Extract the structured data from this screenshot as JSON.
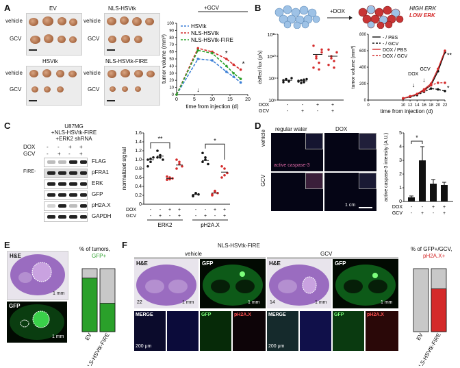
{
  "panelA": {
    "label": "A",
    "photos": [
      {
        "title": "EV",
        "rows": [
          "vehicle",
          "GCV"
        ]
      },
      {
        "title": "NLS-HSVtk",
        "rows": [
          "vehicle",
          "GCV"
        ]
      },
      {
        "title": "HSVtk",
        "rows": [
          "vehicle",
          "GCV"
        ]
      },
      {
        "title": "NLS-HSVtk-FIRE",
        "rows": [
          "vehicle",
          "GCV"
        ]
      }
    ],
    "gcv_label": "+GCV"
  },
  "panelB": {
    "label": "B",
    "dox_label": "+DOX",
    "high_erk": "HIGH ERK",
    "low_erk": "LOW ERK",
    "dox_marker": "DOX",
    "gcv_marker": "GCV"
  },
  "panelC": {
    "label": "C",
    "header": [
      "U87MG",
      "+NLS-HSVtk-FIRE",
      "+ERK2 shRNA"
    ],
    "dox_row_label": "DOX",
    "gcv_row_label": "GCV",
    "dox_signs": [
      "-",
      "-",
      "+",
      "+"
    ],
    "gcv_signs": [
      "-",
      "+",
      "-",
      "+"
    ],
    "fire_label": "FIRE-",
    "blots": [
      "FLAG",
      "pFRA1",
      "ERK",
      "GFP",
      "pH2A.X",
      "GAPDH"
    ]
  },
  "panelD": {
    "label": "D",
    "col1": "regular water",
    "col2": "DOX",
    "row1": "vehicle",
    "row2": "GCV",
    "stain": "active caspase-3",
    "scale": "1 cm"
  },
  "panelE": {
    "label": "E",
    "he": "H&E",
    "gfp": "GFP",
    "scale1": "1 mm",
    "scale2": "1 mm"
  },
  "panelF": {
    "label": "F",
    "title": "NLS-HSVtk-FIRE",
    "vehicle": "vehicle",
    "gcv": "GCV",
    "he": "H&E",
    "gfp": "GFP",
    "merge": "MERGE",
    "ph2ax": "pH2A.X",
    "num1": "22",
    "num2": "14",
    "scale_mm": "1 mm",
    "scale_um": "200 μm"
  },
  "chart_data": [
    {
      "id": "A-growth",
      "type": "line",
      "title": "",
      "xlabel": "time from injection (d)",
      "ylabel": "tumor volume (mm³)",
      "x": [
        0,
        6,
        10,
        14,
        16,
        18
      ],
      "xlim": [
        0,
        20
      ],
      "ylim": [
        0,
        100
      ],
      "xticks": [
        0,
        5,
        10,
        15,
        20
      ],
      "yticks": [
        0,
        10,
        20,
        30,
        40,
        50,
        60,
        70,
        80,
        90,
        100
      ],
      "series": [
        {
          "name": "HSVtk",
          "color": "#3b7fd6",
          "values": [
            0,
            50,
            48,
            32,
            25,
            17
          ]
        },
        {
          "name": "NLS-HSVtk",
          "color": "#d42a2a",
          "values": [
            0,
            65,
            60,
            50,
            42,
            35
          ]
        },
        {
          "name": "NLS-HSVtk-FIRE",
          "color": "#2aa02a",
          "values": [
            0,
            62,
            58,
            40,
            30,
            22
          ]
        }
      ],
      "annotations": [
        "*",
        "*"
      ]
    },
    {
      "id": "B-flux",
      "type": "scatter",
      "ylabel": "dsRed flux (p/s)",
      "yscale": "log",
      "ylim": [
        100000000,
        100000000000
      ],
      "ytick_labels": [
        "10⁸",
        "10⁹",
        "10¹⁰",
        "10¹¹"
      ],
      "row_labels": [
        "DOX",
        "GCV"
      ],
      "groups": [
        {
          "dox": "-",
          "gcv": "-",
          "color": "#111111",
          "values": [
            800000000,
            900000000,
            700000000,
            1000000000,
            650000000,
            850000000,
            750000000
          ],
          "mean": 800000000
        },
        {
          "dox": "-",
          "gcv": "+",
          "color": "#111111",
          "values": [
            700000000,
            800000000,
            650000000,
            900000000,
            750000000,
            600000000,
            850000000
          ],
          "mean": 750000000
        },
        {
          "dox": "+",
          "gcv": "-",
          "color": "#d42a2a",
          "values": [
            30000000000,
            10000000000,
            5000000000,
            20000000000,
            3000000000,
            8000000000,
            2500000000,
            15000000000
          ],
          "mean": 12000000000
        },
        {
          "dox": "+",
          "gcv": "+",
          "color": "#d42a2a",
          "values": [
            20000000000,
            10000000000,
            6000000000,
            15000000000,
            4000000000,
            8000000000,
            3000000000
          ],
          "mean": 10000000000
        }
      ]
    },
    {
      "id": "B-growth",
      "type": "line",
      "xlabel": "time from injection (d)",
      "ylabel": "tumor volume (mm³)",
      "x": [
        10,
        12,
        14,
        16,
        18,
        20,
        22
      ],
      "xlim": [
        0,
        22
      ],
      "ylim": [
        0,
        800
      ],
      "xticks": [
        0,
        10,
        12,
        14,
        16,
        18,
        20,
        22
      ],
      "yticks": [
        0,
        200,
        400,
        600,
        800
      ],
      "series": [
        {
          "name": "- / PBS",
          "color": "#111111",
          "dash": false,
          "values": [
            20,
            40,
            70,
            120,
            180,
            350,
            580
          ]
        },
        {
          "name": "- / GCV",
          "color": "#111111",
          "dash": true,
          "values": [
            20,
            40,
            60,
            100,
            140,
            130,
            110
          ]
        },
        {
          "name": "DOX / PBS",
          "color": "#d42a2a",
          "dash": false,
          "values": [
            20,
            45,
            75,
            130,
            200,
            380,
            600
          ]
        },
        {
          "name": "DOX / GCV",
          "color": "#d42a2a",
          "dash": true,
          "values": [
            20,
            45,
            70,
            110,
            180,
            210,
            210
          ]
        }
      ],
      "annotations": [
        "**",
        "*"
      ]
    },
    {
      "id": "C-quant",
      "type": "scatter",
      "ylabel": "normalized signal",
      "ylim": [
        0,
        1.6
      ],
      "ytick_labels": [
        "0",
        "0.2",
        "0.4",
        "0.6",
        "0.8",
        "1.0",
        "1.2",
        "1.4",
        "1.6"
      ],
      "row_labels": [
        "DOX",
        "GCV"
      ],
      "group_labels": [
        "ERK2",
        "pH2A.X"
      ],
      "groups": [
        {
          "g": "ERK2",
          "dox": "-",
          "gcv": "-",
          "color": "#111111",
          "mean": 1.0,
          "values": [
            1.0,
            0.95,
            1.05,
            0.85,
            1.02
          ]
        },
        {
          "g": "ERK2",
          "dox": "-",
          "gcv": "+",
          "color": "#111111",
          "mean": 1.08,
          "values": [
            1.2,
            1.1,
            1.0,
            1.05,
            1.05
          ]
        },
        {
          "g": "ERK2",
          "dox": "+",
          "gcv": "-",
          "color": "#d42a2a",
          "mean": 0.58,
          "values": [
            0.55,
            0.6,
            0.58,
            0.62,
            0.56
          ]
        },
        {
          "g": "ERK2",
          "dox": "+",
          "gcv": "+",
          "color": "#d42a2a",
          "mean": 0.88,
          "values": [
            0.8,
            0.95,
            0.85,
            1.0,
            0.9
          ]
        },
        {
          "g": "pH2A.X",
          "dox": "-",
          "gcv": "-",
          "color": "#111111",
          "mean": 0.22,
          "values": [
            0.2,
            0.25,
            0.22,
            0.18,
            0.24
          ]
        },
        {
          "g": "pH2A.X",
          "dox": "-",
          "gcv": "+",
          "color": "#111111",
          "mean": 0.98,
          "values": [
            1.15,
            1.0,
            0.9,
            0.95,
            1.05
          ]
        },
        {
          "g": "pH2A.X",
          "dox": "+",
          "gcv": "-",
          "color": "#d42a2a",
          "mean": 0.25,
          "values": [
            0.2,
            0.3,
            0.25,
            0.22,
            0.28
          ]
        },
        {
          "g": "pH2A.X",
          "dox": "+",
          "gcv": "+",
          "color": "#d42a2a",
          "mean": 0.72,
          "values": [
            0.6,
            0.8,
            0.7,
            0.85,
            0.65
          ]
        }
      ],
      "annotations": [
        "**",
        "*"
      ]
    },
    {
      "id": "D-bars",
      "type": "bar",
      "ylabel": "active caspase-3 intensity (A.U.)",
      "ylim": [
        0,
        5
      ],
      "yticks": [
        0,
        1,
        2,
        3,
        4,
        5
      ],
      "row_labels": [
        "DOX",
        "GCV"
      ],
      "dox_signs": [
        "-",
        "-",
        "+",
        "+"
      ],
      "gcv_signs": [
        "-",
        "+",
        "-",
        "+"
      ],
      "values": [
        0.3,
        3.0,
        1.3,
        1.2
      ],
      "errors": [
        0.1,
        1.0,
        0.3,
        0.2
      ],
      "annotations": [
        "*"
      ]
    },
    {
      "id": "E-bars",
      "type": "bar",
      "title": "% of tumors, GFP+",
      "title_parts": [
        "% of tumors,",
        "GFP+"
      ],
      "categories": [
        "EV",
        "NLS-HSVtk-FIRE"
      ],
      "values": [
        85,
        45
      ],
      "ylim": [
        0,
        100
      ]
    },
    {
      "id": "F-bars",
      "type": "bar",
      "title": "% of GFP+/GCV, pH2A.X+",
      "title_parts": [
        "% of GFP+/GCV,",
        "pH2A.X+"
      ],
      "categories": [
        "EV",
        "NLS-HSVtk-FIRE"
      ],
      "values": [
        0,
        68
      ],
      "ylim": [
        0,
        100
      ]
    }
  ]
}
